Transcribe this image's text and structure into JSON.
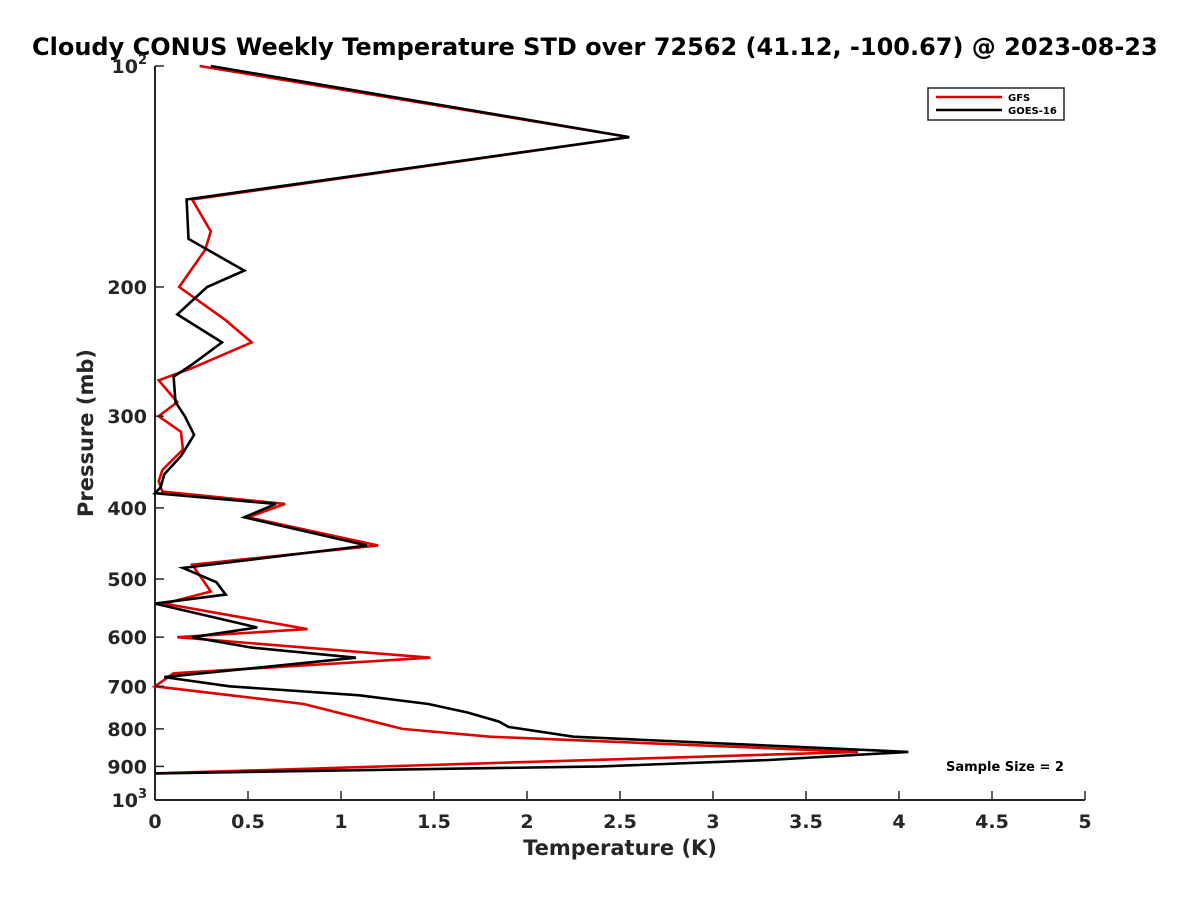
{
  "colors": {
    "gfs": "#e00000",
    "goes": "#000000",
    "axis": "#262626"
  },
  "chart_data": {
    "type": "line",
    "title": "Cloudy CONUS Weekly Temperature STD over 72562 (41.12, -100.67) @ 2023-08-23",
    "xlabel": "Temperature (K)",
    "ylabel": "Pressure (mb)",
    "xlim": [
      0,
      5
    ],
    "ylim": [
      100,
      1000
    ],
    "yscale": "log",
    "y_reversed": true,
    "xticks": [
      0,
      0.5,
      1,
      1.5,
      2,
      2.5,
      3,
      3.5,
      4,
      4.5,
      5
    ],
    "xtick_labels": [
      "0",
      "0.5",
      "1",
      "1.5",
      "2",
      "2.5",
      "3",
      "3.5",
      "4",
      "4.5",
      "5"
    ],
    "yticks": [
      100,
      200,
      300,
      400,
      500,
      600,
      700,
      800,
      900,
      1000
    ],
    "ytick_labels": [
      "10^2",
      "200",
      "300",
      "400",
      "500",
      "600",
      "700",
      "800",
      "900",
      "10^3"
    ],
    "grid": false,
    "legend_position": "top-right",
    "annotation": "Sample Size = 2",
    "series": [
      {
        "name": "GFS",
        "color": "#e00000",
        "points": [
          [
            0.24,
            100
          ],
          [
            2.55,
            125
          ],
          [
            0.2,
            152
          ],
          [
            0.3,
            168
          ],
          [
            0.27,
            178
          ],
          [
            0.13,
            200
          ],
          [
            0.38,
            222
          ],
          [
            0.52,
            238
          ],
          [
            0.2,
            258
          ],
          [
            0.02,
            268
          ],
          [
            0.12,
            287
          ],
          [
            0.02,
            300
          ],
          [
            0.14,
            315
          ],
          [
            0.15,
            333
          ],
          [
            0.04,
            355
          ],
          [
            0.02,
            368
          ],
          [
            0.04,
            380
          ],
          [
            0.7,
            395
          ],
          [
            0.5,
            412
          ],
          [
            1.2,
            450
          ],
          [
            0.2,
            478
          ],
          [
            0.3,
            520
          ],
          [
            0.05,
            540
          ],
          [
            0.82,
            585
          ],
          [
            0.12,
            600
          ],
          [
            1.48,
            640
          ],
          [
            0.1,
            672
          ],
          [
            0.0,
            700
          ],
          [
            0.8,
            740
          ],
          [
            1.33,
            800
          ],
          [
            1.8,
            820
          ],
          [
            3.78,
            860
          ],
          [
            0.0,
            920
          ]
        ]
      },
      {
        "name": "GOES-16",
        "color": "#000000",
        "points": [
          [
            0.3,
            100
          ],
          [
            2.55,
            125
          ],
          [
            0.17,
            152
          ],
          [
            0.18,
            172
          ],
          [
            0.48,
            190
          ],
          [
            0.28,
            200
          ],
          [
            0.12,
            218
          ],
          [
            0.36,
            238
          ],
          [
            0.2,
            255
          ],
          [
            0.1,
            265
          ],
          [
            0.11,
            287
          ],
          [
            0.16,
            300
          ],
          [
            0.21,
            318
          ],
          [
            0.14,
            340
          ],
          [
            0.05,
            360
          ],
          [
            0.03,
            375
          ],
          [
            0.0,
            382
          ],
          [
            0.65,
            395
          ],
          [
            0.48,
            412
          ],
          [
            1.14,
            450
          ],
          [
            0.15,
            483
          ],
          [
            0.33,
            505
          ],
          [
            0.38,
            525
          ],
          [
            0.0,
            540
          ],
          [
            0.55,
            582
          ],
          [
            0.2,
            600
          ],
          [
            0.52,
            620
          ],
          [
            1.08,
            640
          ],
          [
            0.05,
            680
          ],
          [
            0.4,
            700
          ],
          [
            1.1,
            720
          ],
          [
            1.47,
            740
          ],
          [
            1.68,
            760
          ],
          [
            1.85,
            782
          ],
          [
            1.9,
            795
          ],
          [
            2.25,
            820
          ],
          [
            4.05,
            860
          ],
          [
            3.3,
            882
          ],
          [
            2.4,
            900
          ],
          [
            0.0,
            920
          ]
        ]
      }
    ]
  }
}
